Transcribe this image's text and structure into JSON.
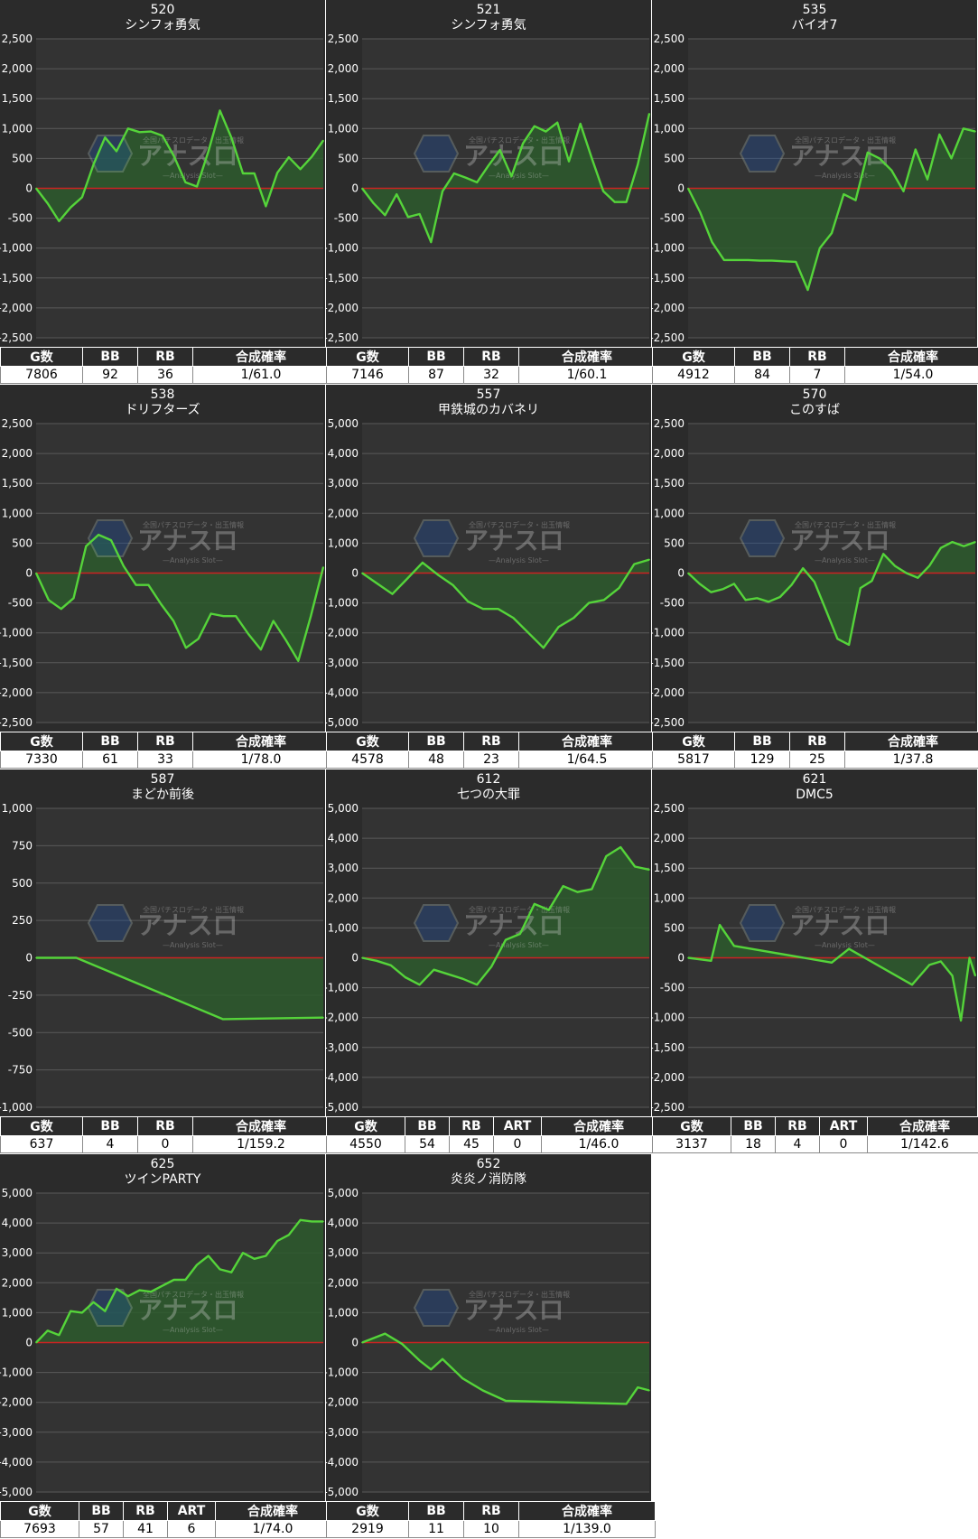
{
  "chart_data": [
    {
      "type": "area",
      "machine_no": "520",
      "title": "シンフォ勇気",
      "ylim": [
        -2500,
        2500
      ],
      "yticks": [
        2500,
        2000,
        1500,
        1000,
        500,
        0,
        -500,
        -1000,
        -1500,
        -2000,
        -2500
      ],
      "y_format": "comma",
      "values": [
        0,
        -250,
        -550,
        -320,
        -150,
        400,
        850,
        620,
        1000,
        940,
        950,
        880,
        540,
        100,
        30,
        620,
        1300,
        850,
        250,
        250,
        -300,
        260,
        520,
        320,
        530,
        800
      ],
      "table": {
        "headers": [
          "G数",
          "BB",
          "RB",
          "合成確率"
        ],
        "values": [
          "7806",
          "92",
          "36",
          "1/61.0"
        ]
      }
    },
    {
      "type": "area",
      "machine_no": "521",
      "title": "シンフォ勇気",
      "ylim": [
        -2500,
        2500
      ],
      "yticks": [
        2500,
        2000,
        1500,
        1000,
        500,
        0,
        -500,
        -1000,
        -1500,
        -2000,
        -2500
      ],
      "y_format": "comma",
      "values": [
        0,
        -250,
        -450,
        -100,
        -480,
        -430,
        -900,
        -50,
        250,
        180,
        100,
        380,
        640,
        200,
        750,
        1040,
        950,
        1100,
        450,
        1080,
        500,
        -50,
        -230,
        -230,
        400,
        1250
      ],
      "table": {
        "headers": [
          "G数",
          "BB",
          "RB",
          "合成確率"
        ],
        "values": [
          "7146",
          "87",
          "32",
          "1/60.1"
        ]
      }
    },
    {
      "type": "area",
      "machine_no": "535",
      "title": "バイオ7",
      "ylim": [
        -2500,
        2500
      ],
      "yticks": [
        2500,
        2000,
        1500,
        1000,
        500,
        0,
        -500,
        -1000,
        -1500,
        -2000,
        -2500
      ],
      "y_format": "comma",
      "values": [
        0,
        -400,
        -900,
        -1200,
        -1200,
        -1200,
        -1210,
        -1210,
        -1220,
        -1230,
        -1700,
        -1000,
        -750,
        -100,
        -200,
        600,
        500,
        300,
        -50,
        650,
        150,
        900,
        500,
        1000,
        950
      ],
      "table": {
        "headers": [
          "G数",
          "BB",
          "RB",
          "合成確率"
        ],
        "values": [
          "4912",
          "84",
          "7",
          "1/54.0"
        ]
      }
    },
    {
      "type": "area",
      "machine_no": "538",
      "title": "ドリフターズ",
      "ylim": [
        -2500,
        2500
      ],
      "yticks": [
        2500,
        2000,
        1500,
        1000,
        500,
        0,
        -500,
        -1000,
        -1500,
        -2000,
        -2500
      ],
      "y_format": "comma",
      "values": [
        0,
        -450,
        -600,
        -420,
        450,
        640,
        550,
        120,
        -200,
        -200,
        -520,
        -800,
        -1250,
        -1100,
        -680,
        -720,
        -720,
        -1020,
        -1280,
        -800,
        -1120,
        -1470,
        -720,
        100
      ],
      "table": {
        "headers": [
          "G数",
          "BB",
          "RB",
          "合成確率"
        ],
        "values": [
          "7330",
          "61",
          "33",
          "1/78.0"
        ]
      }
    },
    {
      "type": "area",
      "machine_no": "557",
      "title": "甲鉄城のカバネリ",
      "ylim": [
        -5000,
        5000
      ],
      "yticks": [
        5000,
        4000,
        3000,
        2000,
        1000,
        0,
        -1000,
        -2000,
        -3000,
        -4000,
        -5000
      ],
      "y_format": "comma",
      "values": [
        0,
        -350,
        -700,
        -180,
        350,
        -50,
        -400,
        -950,
        -1200,
        -1200,
        -1500,
        -2000,
        -2500,
        -1800,
        -1500,
        -1000,
        -900,
        -500,
        300,
        450
      ],
      "table": {
        "headers": [
          "G数",
          "BB",
          "RB",
          "合成確率"
        ],
        "values": [
          "4578",
          "48",
          "23",
          "1/64.5"
        ]
      }
    },
    {
      "type": "area",
      "machine_no": "570",
      "title": "このすば",
      "ylim": [
        -2500,
        2500
      ],
      "yticks": [
        2500,
        2000,
        1500,
        1000,
        500,
        0,
        -500,
        -1000,
        -1500,
        -2000,
        -2500
      ],
      "y_format": "comma",
      "values": [
        0,
        -180,
        -320,
        -270,
        -180,
        -450,
        -420,
        -480,
        -400,
        -200,
        80,
        -150,
        -620,
        -1100,
        -1200,
        -250,
        -130,
        320,
        120,
        0,
        -80,
        120,
        420,
        520,
        450,
        520
      ],
      "table": {
        "headers": [
          "G数",
          "BB",
          "RB",
          "合成確率"
        ],
        "values": [
          "5817",
          "129",
          "25",
          "1/37.8"
        ]
      }
    },
    {
      "type": "area",
      "machine_no": "587",
      "title": "まどか前後",
      "ylim": [
        -1000,
        1000
      ],
      "yticks": [
        1000,
        750,
        500,
        250,
        0,
        -250,
        -500,
        -750,
        -1000
      ],
      "y_format": "comma",
      "points": [
        [
          0,
          0
        ],
        [
          0.14,
          0
        ],
        [
          0.65,
          -410
        ],
        [
          1.0,
          -400
        ]
      ],
      "table": {
        "headers": [
          "G数",
          "BB",
          "RB",
          "合成確率"
        ],
        "values": [
          "637",
          "4",
          "0",
          "1/159.2"
        ]
      }
    },
    {
      "type": "area",
      "machine_no": "612",
      "title": "七つの大罪",
      "ylim": [
        -5000,
        5000
      ],
      "yticks": [
        5000,
        4000,
        3000,
        2000,
        1000,
        0,
        -1000,
        -2000,
        -3000,
        -4000,
        -5000
      ],
      "y_format": "comma",
      "values": [
        0,
        -100,
        -250,
        -650,
        -900,
        -400,
        -550,
        -700,
        -900,
        -300,
        600,
        800,
        1800,
        1600,
        2400,
        2200,
        2300,
        3400,
        3700,
        3050,
        2950
      ],
      "table": {
        "headers": [
          "G数",
          "BB",
          "RB",
          "ART",
          "合成確率"
        ],
        "values": [
          "4550",
          "54",
          "45",
          "0",
          "1/46.0"
        ]
      }
    },
    {
      "type": "area",
      "machine_no": "621",
      "title": "DMC5",
      "ylim": [
        -2500,
        2500
      ],
      "yticks": [
        2500,
        2000,
        1500,
        1000,
        500,
        0,
        -500,
        -1000,
        -1500,
        -2000,
        -2500
      ],
      "y_format": "comma",
      "points": [
        [
          0,
          0
        ],
        [
          0.08,
          -50
        ],
        [
          0.11,
          550
        ],
        [
          0.16,
          200
        ],
        [
          0.5,
          -80
        ],
        [
          0.56,
          150
        ],
        [
          0.78,
          -450
        ],
        [
          0.84,
          -120
        ],
        [
          0.88,
          -60
        ],
        [
          0.92,
          -300
        ],
        [
          0.95,
          -1050
        ],
        [
          0.98,
          0
        ],
        [
          1.0,
          -300
        ]
      ],
      "table": {
        "headers": [
          "G数",
          "BB",
          "RB",
          "ART",
          "合成確率"
        ],
        "values": [
          "3137",
          "18",
          "4",
          "0",
          "1/142.6"
        ]
      }
    },
    {
      "type": "area",
      "machine_no": "625",
      "title": "ツインPARTY",
      "ylim": [
        -5000,
        5000
      ],
      "yticks": [
        5000,
        4000,
        3000,
        2000,
        1000,
        0,
        -1000,
        -2000,
        -3000,
        -4000,
        -5000
      ],
      "y_format": "comma",
      "values": [
        0,
        400,
        250,
        1050,
        1000,
        1350,
        1050,
        1800,
        1550,
        1750,
        1700,
        1900,
        2100,
        2100,
        2600,
        2900,
        2450,
        2350,
        3000,
        2800,
        2900,
        3400,
        3600,
        4100,
        4050,
        4050
      ],
      "table": {
        "headers": [
          "G数",
          "BB",
          "RB",
          "ART",
          "合成確率"
        ],
        "values": [
          "7693",
          "57",
          "41",
          "6",
          "1/74.0"
        ]
      }
    },
    {
      "type": "area",
      "machine_no": "652",
      "title": "炎炎ノ消防隊",
      "ylim": [
        -5000,
        5000
      ],
      "yticks": [
        5000,
        4000,
        3000,
        2000,
        1000,
        0,
        -1000,
        -2000,
        -3000,
        -4000,
        -5000
      ],
      "y_format": "comma",
      "points": [
        [
          0,
          0
        ],
        [
          0.08,
          300
        ],
        [
          0.14,
          -50
        ],
        [
          0.2,
          -600
        ],
        [
          0.24,
          -900
        ],
        [
          0.28,
          -550
        ],
        [
          0.35,
          -1200
        ],
        [
          0.42,
          -1600
        ],
        [
          0.5,
          -1950
        ],
        [
          0.92,
          -2050
        ],
        [
          0.96,
          -1500
        ],
        [
          1.0,
          -1600
        ]
      ],
      "table": {
        "headers": [
          "G数",
          "BB",
          "RB",
          "合成確率"
        ],
        "values": [
          "2919",
          "11",
          "10",
          "1/139.0"
        ]
      }
    }
  ],
  "colors": {
    "panel_bg": "#2b2b2b",
    "plot_bg": "#333333",
    "grid": "#5a5a5a",
    "zero_line": "#cc2222",
    "line": "#55d43a",
    "fill": "#2d5a2d",
    "text": "#ffffff"
  },
  "watermark": {
    "icon": "analysis-slot-logo",
    "text": "アナスロ",
    "sub": "—Analysis Slot—",
    "top": "全国パチスロデータ・出玉情報"
  }
}
